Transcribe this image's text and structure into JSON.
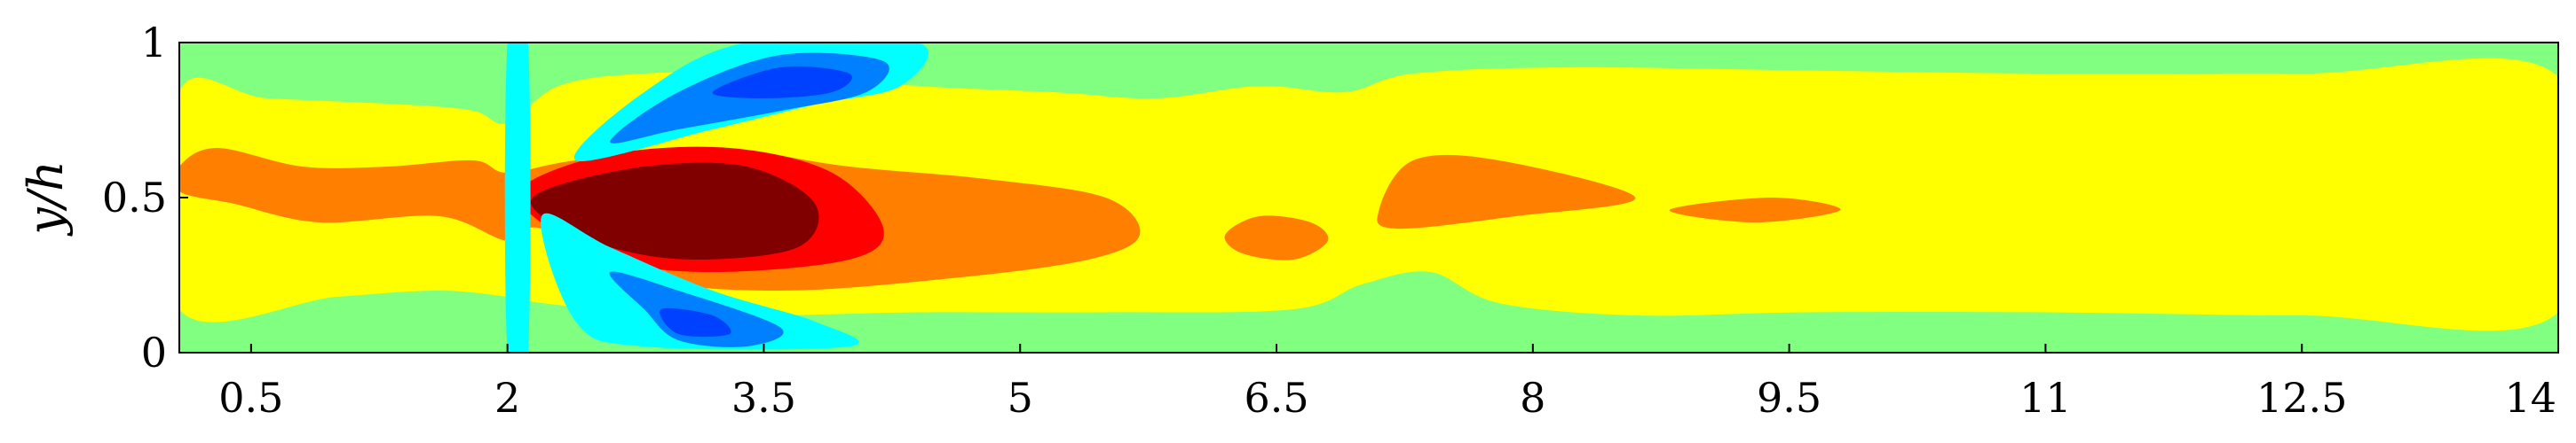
{
  "chart_data": {
    "type": "heatmap",
    "title": "",
    "xlabel": "",
    "ylabel": "y/h",
    "xlim": [
      0.08,
      14
    ],
    "ylim": [
      0,
      1
    ],
    "x_ticks": [
      {
        "value": 0.5,
        "label": "0.5"
      },
      {
        "value": 2,
        "label": "2"
      },
      {
        "value": 3.5,
        "label": "3.5"
      },
      {
        "value": 5,
        "label": "5"
      },
      {
        "value": 6.5,
        "label": "6.5"
      },
      {
        "value": 8,
        "label": "8"
      },
      {
        "value": 9.5,
        "label": "9.5"
      },
      {
        "value": 11,
        "label": "11"
      },
      {
        "value": 12.5,
        "label": "12.5"
      },
      {
        "value": 14,
        "label": "14"
      }
    ],
    "y_ticks": [
      {
        "value": 0,
        "label": "0"
      },
      {
        "value": 0.5,
        "label": "0.5"
      },
      {
        "value": 1,
        "label": "1"
      }
    ],
    "grid": false,
    "legend": "none",
    "colormap": "jet",
    "colors": {
      "background": "#80ff80",
      "level_yellow": "#ffff00",
      "level_orange": "#ff8000",
      "level_red": "#ff0000",
      "level_darkred": "#800000",
      "level_cyan": "#00ffff",
      "level_blue": "#0080ff",
      "level_darkblue": "#0040ff",
      "axis": "#000000"
    },
    "regions": [
      {
        "name": "yellow-band",
        "color": "level_yellow",
        "points": [
          [
            0.08,
            0.84
          ],
          [
            0.6,
            0.82
          ],
          [
            1.4,
            0.8
          ],
          [
            1.8,
            0.78
          ],
          [
            2.0,
            0.74
          ],
          [
            2.3,
            0.86
          ],
          [
            2.8,
            0.9
          ],
          [
            3.6,
            0.9
          ],
          [
            4.4,
            0.86
          ],
          [
            5.2,
            0.84
          ],
          [
            5.8,
            0.82
          ],
          [
            6.4,
            0.86
          ],
          [
            6.9,
            0.84
          ],
          [
            7.3,
            0.9
          ],
          [
            8.2,
            0.92
          ],
          [
            9.6,
            0.91
          ],
          [
            11,
            0.9
          ],
          [
            12.5,
            0.9
          ],
          [
            14,
            0.89
          ],
          [
            14,
            0.13
          ],
          [
            12.5,
            0.12
          ],
          [
            11,
            0.13
          ],
          [
            9.6,
            0.13
          ],
          [
            8.6,
            0.12
          ],
          [
            7.8,
            0.16
          ],
          [
            7.4,
            0.26
          ],
          [
            7.0,
            0.22
          ],
          [
            6.6,
            0.14
          ],
          [
            5.5,
            0.13
          ],
          [
            4.4,
            0.13
          ],
          [
            3.4,
            0.12
          ],
          [
            2.6,
            0.14
          ],
          [
            2.2,
            0.16
          ],
          [
            2.0,
            0.18
          ],
          [
            1.6,
            0.2
          ],
          [
            1.0,
            0.18
          ],
          [
            0.08,
            0.14
          ]
        ]
      },
      {
        "name": "orange-upstream-wake",
        "color": "level_orange",
        "points": [
          [
            0.08,
            0.6
          ],
          [
            0.3,
            0.66
          ],
          [
            0.8,
            0.6
          ],
          [
            1.3,
            0.6
          ],
          [
            1.8,
            0.62
          ],
          [
            2.0,
            0.58
          ],
          [
            2.4,
            0.62
          ],
          [
            3.2,
            0.66
          ],
          [
            4.0,
            0.6
          ],
          [
            4.8,
            0.56
          ],
          [
            5.5,
            0.5
          ],
          [
            5.7,
            0.38
          ],
          [
            5.4,
            0.3
          ],
          [
            4.6,
            0.24
          ],
          [
            3.6,
            0.2
          ],
          [
            2.8,
            0.24
          ],
          [
            2.2,
            0.4
          ],
          [
            2.0,
            0.36
          ],
          [
            1.6,
            0.44
          ],
          [
            0.9,
            0.42
          ],
          [
            0.4,
            0.48
          ],
          [
            0.08,
            0.52
          ]
        ]
      },
      {
        "name": "red-jet",
        "color": "level_red",
        "points": [
          [
            2.1,
            0.54
          ],
          [
            2.6,
            0.64
          ],
          [
            3.3,
            0.66
          ],
          [
            3.9,
            0.58
          ],
          [
            4.2,
            0.4
          ],
          [
            4.0,
            0.3
          ],
          [
            3.2,
            0.26
          ],
          [
            2.6,
            0.3
          ],
          [
            2.15,
            0.44
          ]
        ]
      },
      {
        "name": "darkred-core",
        "color": "level_darkred",
        "points": [
          [
            2.2,
            0.52
          ],
          [
            2.8,
            0.6
          ],
          [
            3.4,
            0.6
          ],
          [
            3.8,
            0.48
          ],
          [
            3.7,
            0.34
          ],
          [
            3.1,
            0.3
          ],
          [
            2.6,
            0.34
          ],
          [
            2.2,
            0.44
          ]
        ]
      },
      {
        "name": "orange-blob-a",
        "color": "level_orange",
        "points": [
          [
            6.2,
            0.38
          ],
          [
            6.4,
            0.44
          ],
          [
            6.7,
            0.42
          ],
          [
            6.8,
            0.36
          ],
          [
            6.6,
            0.3
          ],
          [
            6.3,
            0.32
          ]
        ]
      },
      {
        "name": "orange-blob-b",
        "color": "level_orange",
        "points": [
          [
            7.1,
            0.46
          ],
          [
            7.3,
            0.62
          ],
          [
            7.8,
            0.62
          ],
          [
            8.6,
            0.5
          ],
          [
            7.9,
            0.44
          ],
          [
            7.2,
            0.4
          ]
        ]
      },
      {
        "name": "orange-blob-c",
        "color": "level_orange",
        "points": [
          [
            8.8,
            0.46
          ],
          [
            9.4,
            0.5
          ],
          [
            9.8,
            0.46
          ],
          [
            9.3,
            0.42
          ]
        ]
      },
      {
        "name": "cyan-upper",
        "color": "level_cyan",
        "points": [
          [
            2.4,
            0.62
          ],
          [
            2.8,
            0.84
          ],
          [
            3.4,
            1.0
          ],
          [
            4.4,
            1.0
          ],
          [
            4.3,
            0.86
          ],
          [
            3.8,
            0.8
          ],
          [
            3.2,
            0.72
          ]
        ]
      },
      {
        "name": "blue-upper",
        "color": "level_blue",
        "points": [
          [
            2.6,
            0.68
          ],
          [
            3.0,
            0.84
          ],
          [
            3.6,
            0.96
          ],
          [
            4.2,
            0.94
          ],
          [
            4.1,
            0.84
          ],
          [
            3.6,
            0.78
          ],
          [
            3.0,
            0.72
          ]
        ]
      },
      {
        "name": "darkblue-upper",
        "color": "level_darkblue",
        "points": [
          [
            3.2,
            0.84
          ],
          [
            3.6,
            0.92
          ],
          [
            4.0,
            0.9
          ],
          [
            3.9,
            0.84
          ],
          [
            3.5,
            0.82
          ]
        ]
      },
      {
        "name": "cyan-lower",
        "color": "level_cyan",
        "points": [
          [
            2.2,
            0.44
          ],
          [
            2.6,
            0.34
          ],
          [
            3.2,
            0.2
          ],
          [
            3.8,
            0.1
          ],
          [
            4.0,
            0.02
          ],
          [
            2.8,
            0.02
          ],
          [
            2.4,
            0.1
          ]
        ]
      },
      {
        "name": "blue-lower",
        "color": "level_blue",
        "points": [
          [
            2.6,
            0.26
          ],
          [
            3.0,
            0.2
          ],
          [
            3.6,
            0.08
          ],
          [
            3.4,
            0.02
          ],
          [
            3.0,
            0.04
          ],
          [
            2.8,
            0.14
          ]
        ]
      },
      {
        "name": "darkblue-lower",
        "color": "level_darkblue",
        "points": [
          [
            2.9,
            0.14
          ],
          [
            3.2,
            0.12
          ],
          [
            3.3,
            0.06
          ],
          [
            3.0,
            0.06
          ]
        ]
      },
      {
        "name": "cyan-step-strip",
        "color": "level_cyan",
        "points": [
          [
            2.0,
            1.0
          ],
          [
            2.12,
            1.0
          ],
          [
            2.12,
            0.0
          ],
          [
            2.0,
            0.0
          ]
        ]
      }
    ]
  }
}
